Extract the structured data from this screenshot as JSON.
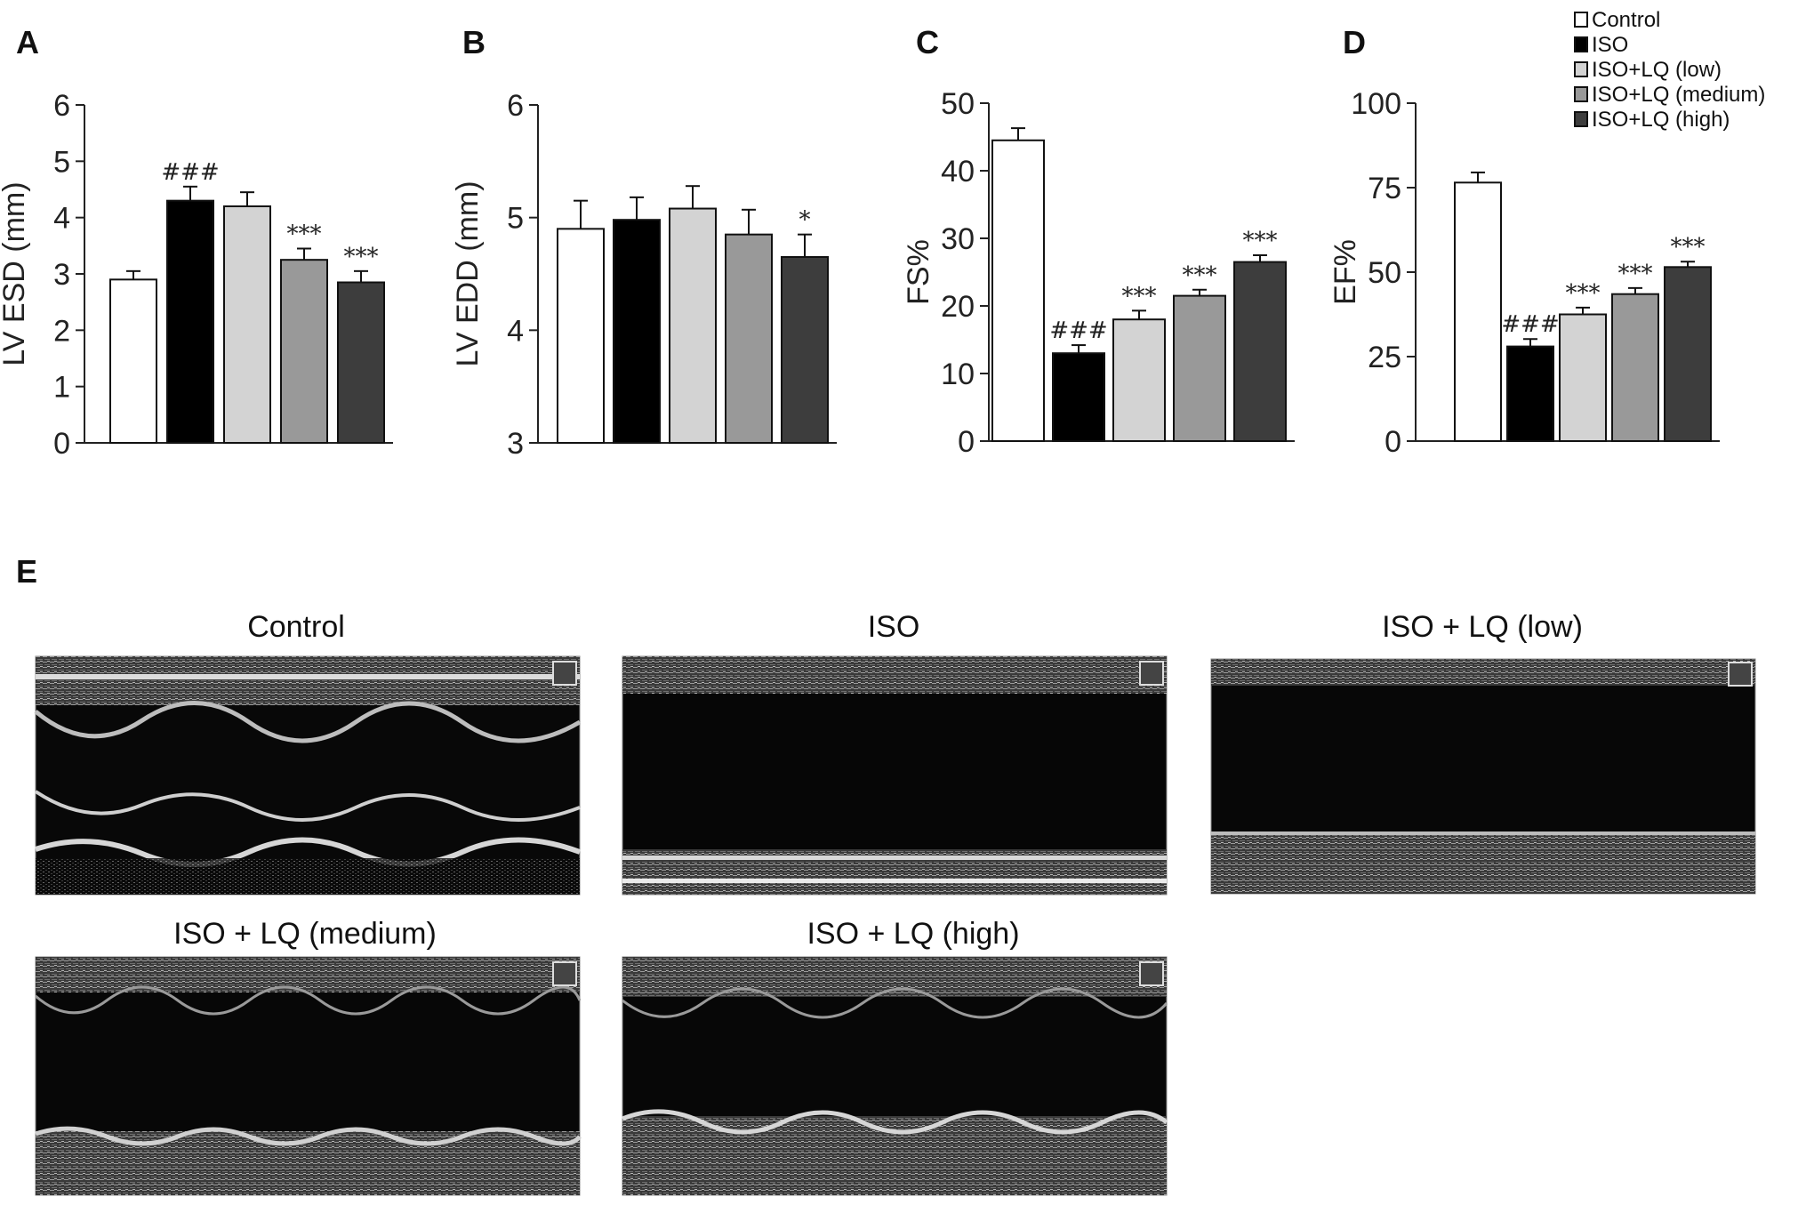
{
  "colors": {
    "Control": "#ffffff",
    "ISO": "#000000",
    "ISO+LQ (low)": "#d3d3d3",
    "ISO+LQ (medium)": "#999999",
    "ISO+LQ (high)": "#3d3d3d"
  },
  "legend": [
    "Control",
    "ISO",
    "ISO+LQ (low)",
    "ISO+LQ (medium)",
    "ISO+LQ (high)"
  ],
  "chart_data": [
    {
      "type": "bar",
      "panel": "A",
      "ylabel": "LV ESD (mm)",
      "ylim": [
        0,
        6
      ],
      "yticks": [
        0,
        1,
        2,
        3,
        4,
        5,
        6
      ],
      "categories": [
        "Control",
        "ISO",
        "ISO+LQ (low)",
        "ISO+LQ (medium)",
        "ISO+LQ (high)"
      ],
      "values": [
        2.9,
        4.3,
        4.2,
        3.25,
        2.85
      ],
      "errors": [
        0.15,
        0.25,
        0.25,
        0.2,
        0.2
      ],
      "significance": [
        "",
        "###",
        "",
        "***",
        "***"
      ]
    },
    {
      "type": "bar",
      "panel": "B",
      "ylabel": "LV EDD (mm)",
      "ylim": [
        3,
        6
      ],
      "yticks": [
        3,
        4,
        5,
        6
      ],
      "categories": [
        "Control",
        "ISO",
        "ISO+LQ (low)",
        "ISO+LQ (medium)",
        "ISO+LQ (high)"
      ],
      "values": [
        4.9,
        4.98,
        5.08,
        4.85,
        4.65
      ],
      "errors": [
        0.25,
        0.2,
        0.2,
        0.22,
        0.2
      ],
      "significance": [
        "",
        "",
        "",
        "",
        "*"
      ]
    },
    {
      "type": "bar",
      "panel": "C",
      "ylabel": "FS%",
      "ylim": [
        0,
        50
      ],
      "yticks": [
        0,
        10,
        20,
        30,
        40,
        50
      ],
      "categories": [
        "Control",
        "ISO",
        "ISO+LQ (low)",
        "ISO+LQ (medium)",
        "ISO+LQ (high)"
      ],
      "values": [
        44.5,
        13,
        18,
        21.5,
        26.5
      ],
      "errors": [
        1.8,
        1.2,
        1.3,
        0.9,
        1.0
      ],
      "significance": [
        "",
        "###",
        "***",
        "***",
        "***"
      ]
    },
    {
      "type": "bar",
      "panel": "D",
      "ylabel": "EF%",
      "ylim": [
        0,
        100
      ],
      "yticks": [
        0,
        25,
        50,
        75,
        100
      ],
      "categories": [
        "Control",
        "ISO",
        "ISO+LQ (low)",
        "ISO+LQ (medium)",
        "ISO+LQ (high)"
      ],
      "values": [
        76.5,
        28,
        37.5,
        43.5,
        51.5
      ],
      "errors": [
        3.0,
        2.2,
        2.0,
        1.8,
        1.6
      ],
      "significance": [
        "",
        "###",
        "***",
        "***",
        "***"
      ]
    }
  ],
  "echo": {
    "panel": "E",
    "titles": [
      "Control",
      "ISO",
      "ISO + LQ (low)",
      "ISO + LQ (medium)",
      "ISO + LQ (high)"
    ]
  }
}
